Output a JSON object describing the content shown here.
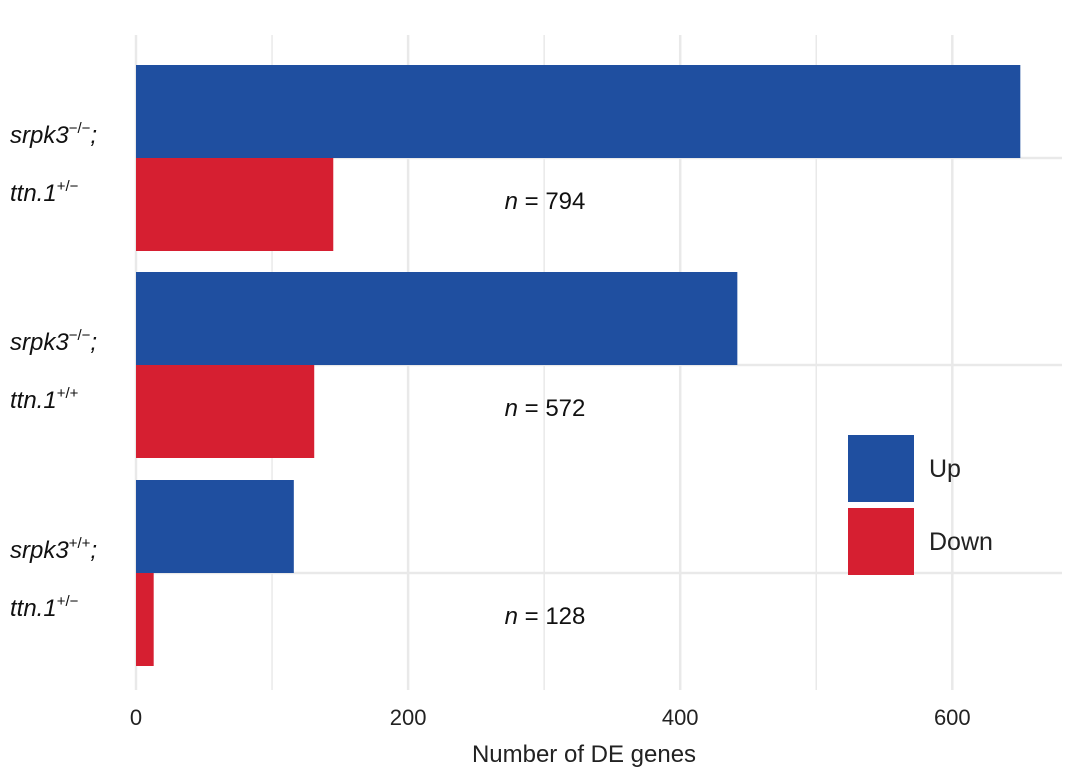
{
  "chart_data": {
    "type": "bar",
    "orientation": "horizontal",
    "xlabel": "Number of DE genes",
    "ylabel": "",
    "xlim": [
      0,
      680
    ],
    "x_ticks": [
      0,
      200,
      400,
      600
    ],
    "x_tick_labels": [
      "0",
      "200",
      "400",
      "600"
    ],
    "grid": true,
    "legend_position": "right",
    "categories": [
      {
        "line1": "srpk3",
        "sup1": "−/−",
        "sep": ";",
        "line2": "ttn.1",
        "sup2": "+/−",
        "n_prefix": "n",
        "n_text": " = 794"
      },
      {
        "line1": "srpk3",
        "sup1": "−/−",
        "sep": ";",
        "line2": "ttn.1",
        "sup2": "+/+",
        "n_prefix": "n",
        "n_text": " = 572"
      },
      {
        "line1": "srpk3",
        "sup1": "+/+",
        "sep": ";",
        "line2": "ttn.1",
        "sup2": "+/−",
        "n_prefix": "n",
        "n_text": " = 128"
      }
    ],
    "series": [
      {
        "name": "Up",
        "color": "#1f4fa0",
        "values": [
          650,
          442,
          116
        ]
      },
      {
        "name": "Down",
        "color": "#d61f31",
        "values": [
          145,
          131,
          13
        ]
      }
    ]
  }
}
